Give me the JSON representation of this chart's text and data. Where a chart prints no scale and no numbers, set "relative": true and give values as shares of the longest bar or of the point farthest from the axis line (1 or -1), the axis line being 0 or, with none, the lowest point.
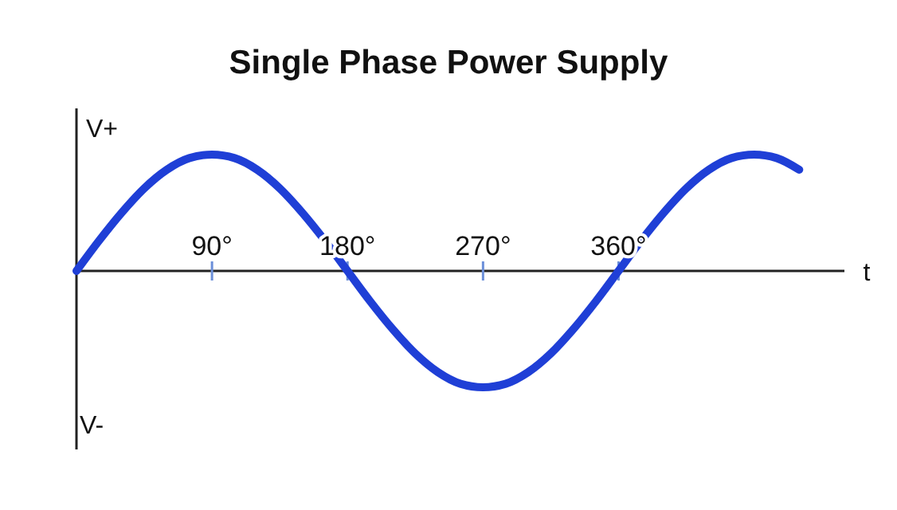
{
  "chart_data": {
    "type": "line",
    "title": "Single Phase Power Supply",
    "xlabel": "t",
    "relative": true,
    "annotations": [
      "V+",
      "V-"
    ],
    "xlim": [
      0,
      510
    ],
    "xticks": [
      {
        "value": 90,
        "label": "90°"
      },
      {
        "value": 180,
        "label": "180°"
      },
      {
        "value": 270,
        "label": "270°"
      },
      {
        "value": 360,
        "label": "360°"
      }
    ],
    "x": [
      0,
      15,
      30,
      45,
      60,
      75,
      90,
      105,
      120,
      135,
      150,
      165,
      180,
      195,
      210,
      225,
      240,
      255,
      270,
      285,
      300,
      315,
      330,
      345,
      360,
      375,
      390,
      405,
      420,
      435,
      450,
      465,
      480
    ],
    "series": [
      {
        "color": "#1f3fd6",
        "values": [
          0,
          0.26,
          0.5,
          0.71,
          0.87,
          0.97,
          1,
          0.97,
          0.87,
          0.71,
          0.5,
          0.26,
          0,
          -0.26,
          -0.5,
          -0.71,
          -0.87,
          -0.97,
          -1,
          -0.97,
          -0.87,
          -0.71,
          -0.5,
          -0.26,
          0,
          0.26,
          0.5,
          0.71,
          0.87,
          0.97,
          1,
          0.97,
          0.87
        ]
      }
    ],
    "grid": false,
    "marker": "none",
    "line_style": "solid"
  }
}
